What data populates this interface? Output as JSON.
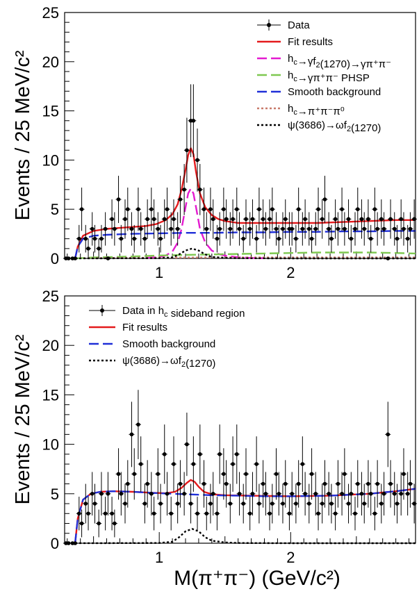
{
  "chart_data": [
    {
      "type": "scatter",
      "panel": "top",
      "ylabel": "Events / 25 MeV/c²",
      "xlabel": "",
      "xlim": [
        0.28,
        2.95
      ],
      "ylim": [
        0,
        25
      ],
      "xticks": [
        "1",
        "2"
      ],
      "yticks": [
        "0",
        "5",
        "10",
        "15",
        "20",
        "25"
      ],
      "grid": false,
      "legend_position": "top-right",
      "legend": [
        {
          "label": "Data",
          "style": "marker",
          "color": "#000000"
        },
        {
          "label": "Fit results",
          "style": "solid",
          "color": "#e41a1c"
        },
        {
          "label": "h_c→γf_2(1270)→γπ⁺π⁻",
          "style": "dashed",
          "color": "#e41ad0"
        },
        {
          "label": "h_c→γπ⁺π⁻ PHSP",
          "style": "dashed",
          "color": "#7ec850"
        },
        {
          "label": "Smooth background",
          "style": "dashed",
          "color": "#1f2fd8"
        },
        {
          "label": "h_c→π⁺π⁻π⁰",
          "style": "dotted",
          "color": "#c87a6a"
        },
        {
          "label": "ψ(3686)→ωf_2(1270)",
          "style": "dotted",
          "color": "#000000"
        }
      ],
      "data_points": {
        "x": [
          0.29,
          0.31,
          0.34,
          0.36,
          0.39,
          0.41,
          0.44,
          0.46,
          0.49,
          0.51,
          0.54,
          0.56,
          0.59,
          0.61,
          0.64,
          0.66,
          0.69,
          0.71,
          0.74,
          0.76,
          0.79,
          0.81,
          0.84,
          0.86,
          0.89,
          0.91,
          0.94,
          0.96,
          0.99,
          1.01,
          1.04,
          1.06,
          1.09,
          1.11,
          1.14,
          1.16,
          1.19,
          1.21,
          1.24,
          1.26,
          1.29,
          1.31,
          1.34,
          1.36,
          1.39,
          1.41,
          1.44,
          1.46,
          1.49,
          1.51,
          1.54,
          1.56,
          1.59,
          1.61,
          1.64,
          1.66,
          1.69,
          1.71,
          1.74,
          1.76,
          1.79,
          1.81,
          1.84,
          1.86,
          1.89,
          1.91,
          1.94,
          1.96,
          1.99,
          2.01,
          2.04,
          2.06,
          2.09,
          2.11,
          2.14,
          2.16,
          2.19,
          2.21,
          2.24,
          2.26,
          2.29,
          2.31,
          2.34,
          2.36,
          2.39,
          2.41,
          2.44,
          2.46,
          2.49,
          2.51,
          2.54,
          2.56,
          2.59,
          2.61,
          2.64,
          2.66,
          2.69,
          2.71,
          2.74,
          2.76,
          2.79,
          2.81,
          2.84,
          2.86,
          2.89,
          2.91,
          2.94
        ],
        "y": [
          0,
          0,
          0,
          0,
          2,
          5,
          2,
          1,
          3,
          2,
          1,
          2,
          3,
          0,
          4,
          3,
          6,
          2,
          4,
          5,
          3,
          2,
          5,
          3,
          2,
          4,
          5,
          4,
          3,
          2,
          4,
          5,
          3,
          4,
          3,
          6,
          7,
          11,
          14,
          14,
          10,
          7,
          5,
          3,
          5,
          4,
          2,
          3,
          5,
          4,
          3,
          4,
          5,
          3,
          2,
          4,
          3,
          4,
          2,
          5,
          4,
          3,
          4,
          5,
          3,
          2,
          3,
          4,
          3,
          3,
          2,
          5,
          3,
          4,
          3,
          2,
          3,
          5,
          4,
          6,
          3,
          2,
          4,
          3,
          5,
          3,
          4,
          2,
          3,
          5,
          4,
          3,
          4,
          2,
          5,
          3,
          4,
          3,
          0,
          4,
          3,
          2,
          4,
          3,
          2,
          3,
          4
        ],
        "yerr": [
          0,
          0,
          0,
          0,
          1.4,
          2.2,
          1.4,
          1,
          1.7,
          1.4,
          1,
          1.4,
          1.7,
          0,
          2,
          1.7,
          2.4,
          1.4,
          2,
          2.2,
          1.7,
          1.4,
          2.2,
          1.7,
          1.4,
          2,
          2.2,
          2,
          1.7,
          1.4,
          2,
          2.2,
          1.7,
          2,
          1.7,
          2.4,
          2.6,
          3.3,
          3.7,
          3.7,
          3.2,
          2.6,
          2.2,
          1.7,
          2.2,
          2,
          1.4,
          1.7,
          2.2,
          2,
          1.7,
          2,
          2.2,
          1.7,
          1.4,
          2,
          1.7,
          2,
          1.4,
          2.2,
          2,
          1.7,
          2,
          2.2,
          1.7,
          1.4,
          1.7,
          2,
          1.7,
          1.7,
          1.4,
          2.2,
          1.7,
          2,
          1.7,
          1.4,
          1.7,
          2.2,
          2,
          2.4,
          1.7,
          1.4,
          2,
          1.7,
          2.2,
          1.7,
          2,
          1.4,
          1.7,
          2.2,
          2,
          1.7,
          2,
          1.4,
          2.2,
          1.7,
          2,
          1.7,
          0,
          2,
          1.7,
          1.4,
          2,
          1.7,
          1.4,
          1.7,
          2
        ]
      },
      "curves": [
        {
          "label": "Fit results",
          "x": [
            0.36,
            0.38,
            0.42,
            0.5,
            0.6,
            0.7,
            0.8,
            0.9,
            0.98,
            1.05,
            1.1,
            1.14,
            1.17,
            1.2,
            1.22,
            1.24,
            1.26,
            1.28,
            1.31,
            1.35,
            1.4,
            1.45,
            1.5,
            1.6,
            1.7,
            1.8,
            2.0,
            2.2,
            2.4,
            2.6,
            2.8,
            2.95
          ],
          "y": [
            0,
            1.2,
            2.3,
            2.8,
            3.0,
            3.1,
            3.2,
            3.3,
            3.5,
            3.9,
            4.5,
            5.5,
            7.0,
            9.0,
            10.5,
            11.2,
            10.6,
            8.8,
            6.6,
            5.2,
            4.4,
            4.0,
            3.8,
            3.6,
            3.6,
            3.6,
            3.6,
            3.6,
            3.7,
            3.8,
            3.9,
            3.9
          ]
        },
        {
          "label": "h_c→γf_2(1270)→γπ⁺π⁻",
          "x": [
            0.9,
            1.0,
            1.05,
            1.1,
            1.14,
            1.17,
            1.2,
            1.22,
            1.24,
            1.26,
            1.28,
            1.31,
            1.35,
            1.4,
            1.45,
            1.5,
            1.6,
            1.7,
            1.8
          ],
          "y": [
            0.05,
            0.15,
            0.3,
            0.7,
            1.6,
            3.0,
            5.2,
            6.6,
            7.1,
            6.6,
            5.2,
            3.0,
            1.6,
            0.8,
            0.45,
            0.28,
            0.12,
            0.05,
            0.02
          ]
        },
        {
          "label": "h_c→γπ⁺π⁻ PHSP",
          "x": [
            0.36,
            0.5,
            0.8,
            1.0,
            1.2,
            1.4,
            1.6,
            1.8,
            2.0,
            2.2,
            2.4,
            2.6,
            2.8,
            2.95
          ],
          "y": [
            0,
            0.1,
            0.2,
            0.3,
            0.35,
            0.4,
            0.45,
            0.5,
            0.55,
            0.6,
            0.6,
            0.6,
            0.55,
            0.5
          ]
        },
        {
          "label": "Smooth background",
          "x": [
            0.36,
            0.38,
            0.42,
            0.5,
            0.6,
            0.8,
            1.0,
            1.2,
            1.4,
            1.6,
            1.8,
            2.0,
            2.2,
            2.4,
            2.6,
            2.8,
            2.95
          ],
          "y": [
            0,
            1.2,
            2.0,
            2.3,
            2.4,
            2.5,
            2.55,
            2.6,
            2.6,
            2.65,
            2.65,
            2.7,
            2.7,
            2.75,
            2.75,
            2.8,
            2.8
          ]
        },
        {
          "label": "h_c→π⁺π⁻π⁰",
          "x": [
            0.36,
            0.6,
            1.0,
            1.4,
            1.8,
            2.2,
            2.6,
            2.95
          ],
          "y": [
            0,
            0.05,
            0.08,
            0.1,
            0.1,
            0.1,
            0.1,
            0.1
          ]
        },
        {
          "label": "ψ(3686)→ωf_2(1270)",
          "x": [
            0.36,
            1.0,
            1.1,
            1.15,
            1.2,
            1.25,
            1.3,
            1.35,
            1.4,
            1.5,
            1.6,
            2.0,
            2.95
          ],
          "y": [
            0,
            0.02,
            0.1,
            0.4,
            0.8,
            1.0,
            0.8,
            0.4,
            0.15,
            0.05,
            0.02,
            0,
            0
          ]
        }
      ]
    },
    {
      "type": "scatter",
      "panel": "bottom",
      "ylabel": "Events / 25 MeV/c²",
      "xlabel": "M(π⁺π⁻) (GeV/c²)",
      "xlim": [
        0.28,
        2.95
      ],
      "ylim": [
        0,
        25
      ],
      "xticks": [
        "1",
        "2"
      ],
      "yticks": [
        "0",
        "5",
        "10",
        "15",
        "20",
        "25"
      ],
      "grid": false,
      "legend_position": "top-left",
      "legend": [
        {
          "label": "Data in h_c sideband region",
          "style": "marker",
          "color": "#000000"
        },
        {
          "label": "Fit results",
          "style": "solid",
          "color": "#e41a1c"
        },
        {
          "label": "Smooth background",
          "style": "dashed",
          "color": "#1f2fd8"
        },
        {
          "label": "ψ(3686)→ωf_2(1270)",
          "style": "dotted",
          "color": "#000000"
        }
      ],
      "data_points": {
        "x": [
          0.29,
          0.31,
          0.34,
          0.36,
          0.39,
          0.41,
          0.44,
          0.46,
          0.49,
          0.51,
          0.54,
          0.56,
          0.59,
          0.61,
          0.64,
          0.66,
          0.69,
          0.71,
          0.74,
          0.76,
          0.79,
          0.81,
          0.84,
          0.86,
          0.89,
          0.91,
          0.94,
          0.96,
          0.99,
          1.01,
          1.04,
          1.06,
          1.09,
          1.11,
          1.14,
          1.16,
          1.19,
          1.21,
          1.24,
          1.26,
          1.29,
          1.31,
          1.34,
          1.36,
          1.39,
          1.41,
          1.44,
          1.46,
          1.49,
          1.51,
          1.54,
          1.56,
          1.59,
          1.61,
          1.64,
          1.66,
          1.69,
          1.71,
          1.74,
          1.76,
          1.79,
          1.81,
          1.84,
          1.86,
          1.89,
          1.91,
          1.94,
          1.96,
          1.99,
          2.01,
          2.04,
          2.06,
          2.09,
          2.11,
          2.14,
          2.16,
          2.19,
          2.21,
          2.24,
          2.26,
          2.29,
          2.31,
          2.34,
          2.36,
          2.39,
          2.41,
          2.44,
          2.46,
          2.49,
          2.51,
          2.54,
          2.56,
          2.59,
          2.61,
          2.64,
          2.66,
          2.69,
          2.71,
          2.74,
          2.76,
          2.79,
          2.81,
          2.84,
          2.86,
          2.89,
          2.91,
          2.94
        ],
        "y": [
          0,
          0,
          0,
          0,
          3,
          2,
          4,
          3,
          5,
          4,
          2,
          5,
          3,
          5,
          3,
          2,
          7,
          5,
          4,
          6,
          11,
          7,
          12,
          8,
          4,
          6,
          5,
          3,
          7,
          4,
          9,
          5,
          3,
          8,
          4,
          6,
          5,
          10,
          4,
          8,
          3,
          9,
          6,
          3,
          4,
          5,
          3,
          9,
          7,
          6,
          4,
          8,
          9,
          5,
          4,
          7,
          3,
          5,
          8,
          4,
          6,
          5,
          3,
          4,
          7,
          5,
          4,
          6,
          3,
          5,
          4,
          6,
          8,
          5,
          4,
          7,
          5,
          3,
          4,
          6,
          5,
          4,
          3,
          6,
          5,
          7,
          4,
          5,
          3,
          6,
          5,
          4,
          6,
          5,
          3,
          6,
          4,
          5,
          11,
          6,
          5,
          4,
          5,
          7,
          5,
          6,
          4
        ],
        "yerr": [
          0,
          0,
          0,
          0,
          1.7,
          1.4,
          2,
          1.7,
          2.2,
          2,
          1.4,
          2.2,
          1.7,
          2.2,
          1.7,
          1.4,
          2.6,
          2.2,
          2,
          2.4,
          3.3,
          2.6,
          3.5,
          2.8,
          2,
          2.4,
          2.2,
          1.7,
          2.6,
          2,
          3,
          2.2,
          1.7,
          2.8,
          2,
          2.4,
          2.2,
          3.2,
          2,
          2.8,
          1.7,
          3,
          2.4,
          1.7,
          2,
          2.2,
          1.7,
          3,
          2.6,
          2.4,
          2,
          2.8,
          3,
          2.2,
          2,
          2.6,
          1.7,
          2.2,
          2.8,
          2,
          2.4,
          2.2,
          1.7,
          2,
          2.6,
          2.2,
          2,
          2.4,
          1.7,
          2.2,
          2,
          2.4,
          2.8,
          2.2,
          2,
          2.6,
          2.2,
          1.7,
          2,
          2.4,
          2.2,
          2,
          1.7,
          2.4,
          2.2,
          2.6,
          2,
          2.2,
          1.7,
          2.4,
          2.2,
          2,
          2.4,
          2.2,
          1.7,
          2.4,
          2,
          2.2,
          3.3,
          2.4,
          2.2,
          2,
          2.2,
          2.6,
          2.2,
          2.4,
          2
        ]
      },
      "curves": [
        {
          "label": "Fit results",
          "x": [
            0.36,
            0.38,
            0.42,
            0.48,
            0.55,
            0.65,
            0.8,
            0.95,
            1.05,
            1.12,
            1.17,
            1.21,
            1.24,
            1.27,
            1.3,
            1.34,
            1.4,
            1.5,
            1.7,
            2.0,
            2.3,
            2.6,
            2.8,
            2.95
          ],
          "y": [
            0,
            2.5,
            4.4,
            5.0,
            5.2,
            5.25,
            5.2,
            5.1,
            5.05,
            5.2,
            5.6,
            6.1,
            6.4,
            6.2,
            5.7,
            5.2,
            4.95,
            4.85,
            4.8,
            4.75,
            4.8,
            5.0,
            5.25,
            5.5
          ]
        },
        {
          "label": "Smooth background",
          "x": [
            0.36,
            0.38,
            0.42,
            0.48,
            0.55,
            0.65,
            0.8,
            1.0,
            1.2,
            1.4,
            1.6,
            1.8,
            2.0,
            2.3,
            2.6,
            2.8,
            2.95
          ],
          "y": [
            0,
            2.5,
            4.4,
            5.0,
            5.2,
            5.25,
            5.2,
            5.05,
            4.95,
            4.85,
            4.8,
            4.75,
            4.75,
            4.8,
            5.0,
            5.25,
            5.5
          ]
        },
        {
          "label": "ψ(3686)→ωf_2(1270)",
          "x": [
            0.36,
            1.0,
            1.1,
            1.15,
            1.2,
            1.25,
            1.3,
            1.35,
            1.4,
            1.5,
            1.6,
            2.0,
            2.95
          ],
          "y": [
            0,
            0.02,
            0.15,
            0.6,
            1.2,
            1.45,
            1.2,
            0.6,
            0.25,
            0.08,
            0.02,
            0,
            0
          ]
        }
      ]
    }
  ]
}
